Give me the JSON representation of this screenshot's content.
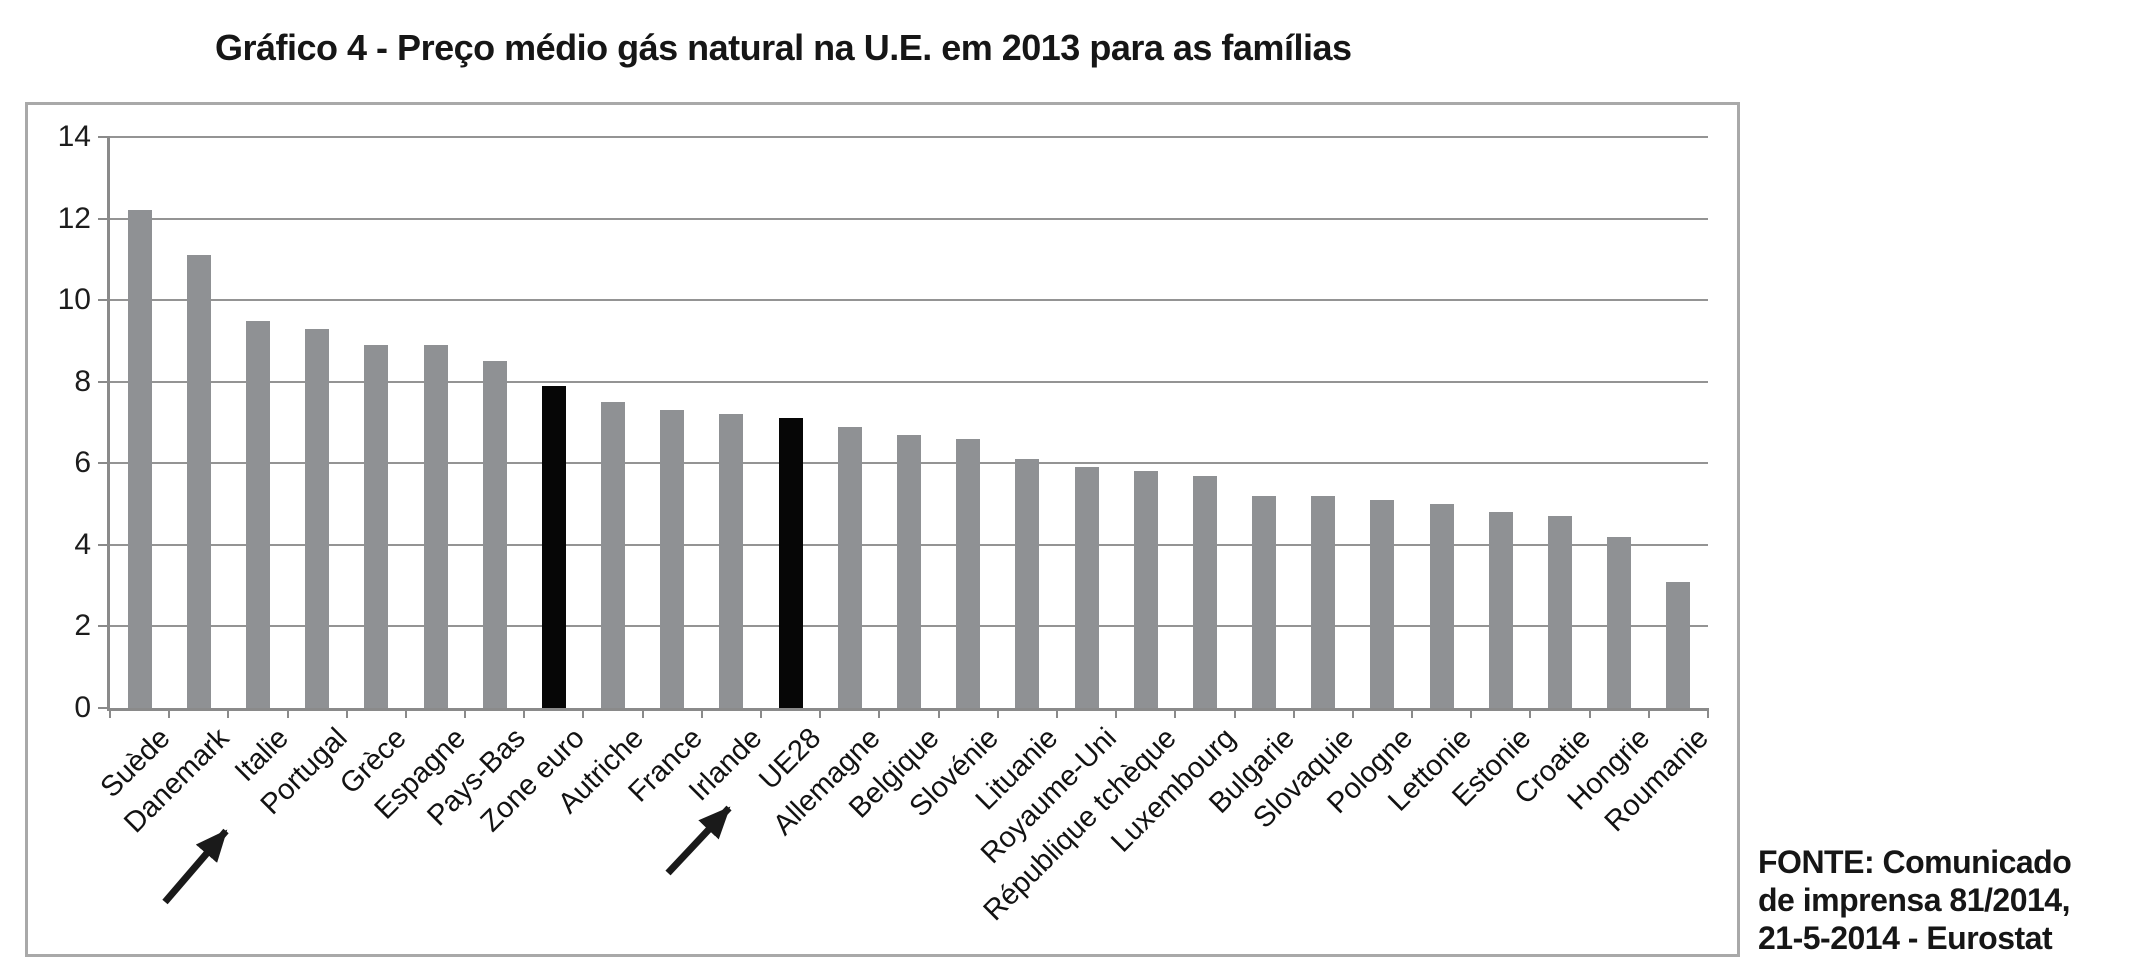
{
  "title": "Gráfico 4 - Preço médio gás natural na U.E. em 2013 para as famílias",
  "source_note": {
    "lines": [
      "FONTE: Comunicado",
      "de imprensa 81/2014,",
      "21-5-2014 - Eurostat"
    ]
  },
  "annotations": [
    {
      "name": "arrow-annotation-portugal",
      "target_label": "Portugal"
    },
    {
      "name": "arrow-annotation-ue28",
      "target_label": "UE28"
    }
  ],
  "colors": {
    "bar_default": "#8f9194",
    "bar_highlight": "#060606",
    "gridline": "#949494",
    "axis": "#8a8a8a",
    "frame_border": "#a9a9a9",
    "arrow": "#1a1a1a",
    "text": "#1c1c1c"
  },
  "chart_data": {
    "type": "bar",
    "title": "Gráfico 4 - Preço médio gás natural na U.E. em 2013 para as famílias",
    "categories": [
      "Suède",
      "Danemark",
      "Italie",
      "Portugal",
      "Grèce",
      "Espagne",
      "Pays-Bas",
      "Zone euro",
      "Autriche",
      "France",
      "Irlande",
      "UE28",
      "Allemagne",
      "Belgique",
      "Slovénie",
      "Lituanie",
      "Royaume-Uni",
      "République tchèque",
      "Luxembourg",
      "Bulgarie",
      "Slovaquie",
      "Pologne",
      "Lettonie",
      "Estonie",
      "Croatie",
      "Hongrie",
      "Roumanie"
    ],
    "values": [
      12.2,
      11.1,
      9.5,
      9.3,
      8.9,
      8.9,
      8.5,
      7.9,
      7.5,
      7.3,
      7.2,
      7.1,
      6.9,
      6.7,
      6.6,
      6.1,
      5.9,
      5.8,
      5.7,
      5.2,
      5.2,
      5.1,
      5.0,
      4.8,
      4.7,
      4.2,
      3.1
    ],
    "highlighted_categories": [
      "Zone euro",
      "UE28"
    ],
    "xlabel": "",
    "ylabel": "",
    "ylim": [
      0,
      14
    ],
    "yticks": [
      0,
      2,
      4,
      6,
      8,
      10,
      12,
      14
    ],
    "grid": true,
    "legend": false
  }
}
